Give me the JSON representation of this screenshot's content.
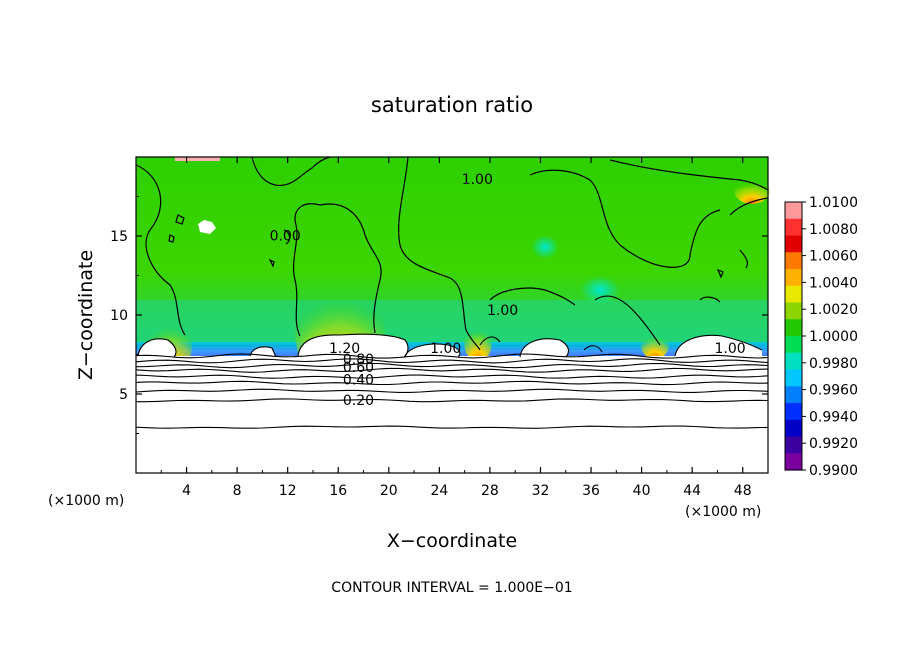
{
  "chart_data": {
    "type": "heatmap",
    "title": "saturation ratio",
    "xlabel": "X−coordinate",
    "ylabel": "Z−coordinate",
    "x_unit_left": "(×1000 m)",
    "x_unit_right": "(×1000 m)",
    "xlim": [
      0,
      50
    ],
    "ylim": [
      0,
      20
    ],
    "x_ticks": [
      4,
      8,
      12,
      16,
      20,
      24,
      28,
      32,
      36,
      40,
      44,
      48
    ],
    "y_ticks": [
      5,
      10,
      15
    ],
    "grid": false,
    "footer": "CONTOUR INTERVAL = 1.000E−01",
    "colorbar": {
      "placement": "right",
      "labels": [
        "1.0100",
        "1.0080",
        "1.0060",
        "1.0040",
        "1.0020",
        "1.0000",
        "0.9980",
        "0.9960",
        "0.9940",
        "0.9920",
        "0.9900"
      ],
      "colors": [
        "#ff9a9a",
        "#ff3030",
        "#e00000",
        "#ff7a00",
        "#ffb000",
        "#e8e800",
        "#8ed400",
        "#22c800",
        "#00dd55",
        "#00e0c0",
        "#00c8ff",
        "#0080ff",
        "#0030ff",
        "#0000c8",
        "#3a00a0",
        "#7a00a0"
      ]
    },
    "contour_labels": [
      {
        "text": "1.00",
        "x": 27,
        "z": 18.3
      },
      {
        "text": "1.00",
        "x": 24.5,
        "z": 7.6
      },
      {
        "text": "1.00",
        "x": 47,
        "z": 7.6
      },
      {
        "text": "1.00",
        "x": 29,
        "z": 10.0
      },
      {
        "text": "1.20",
        "x": 16.5,
        "z": 7.6
      },
      {
        "text": "0.80",
        "x": 17.6,
        "z": 6.9
      },
      {
        "text": "0.60",
        "x": 17.6,
        "z": 6.4
      },
      {
        "text": "0.40",
        "x": 17.6,
        "z": 5.6
      },
      {
        "text": "0.20",
        "x": 17.6,
        "z": 4.3
      },
      {
        "text": "0.00",
        "x": 11.8,
        "z": 14.7
      }
    ],
    "contour_levels_z": [
      2.9,
      4.6,
      5.2,
      5.7,
      6.1,
      6.5,
      6.8,
      7.1,
      7.4
    ]
  }
}
